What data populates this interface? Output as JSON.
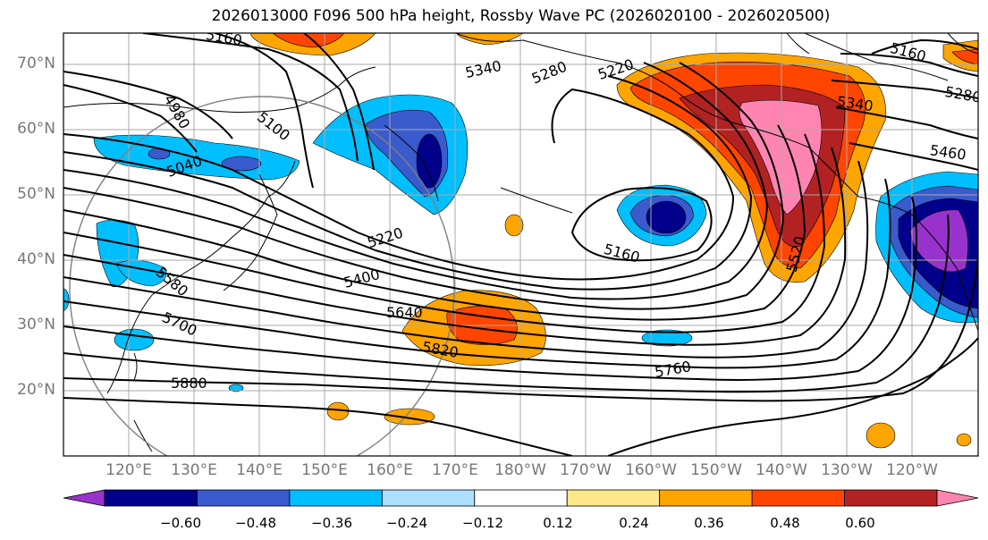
{
  "title": "2026013000 F096 500 hPa height, Rossby Wave PC (2026020100 - 2026020500)",
  "lat_labels": [
    "70°N",
    "60°N",
    "50°N",
    "40°N",
    "30°N",
    "20°N"
  ],
  "lon_labels": [
    "120°E",
    "130°E",
    "140°E",
    "150°E",
    "160°E",
    "170°E",
    "180°W",
    "170°W",
    "160°W",
    "150°W",
    "140°W",
    "130°W",
    "120°W"
  ],
  "colorbar": {
    "levels": [
      "−0.60",
      "−0.48",
      "−0.36",
      "−0.24",
      "−0.12",
      "0.12",
      "0.24",
      "0.36",
      "0.48",
      "0.60"
    ],
    "colors": [
      "#9932CC",
      "#00008B",
      "#3A5BCD",
      "#00BFFF",
      "#ADDFFF",
      "#FFFFFF",
      "#FFE88A",
      "#FFA500",
      "#FF4500",
      "#B22222",
      "#FF85B0"
    ]
  },
  "contour_labels": [
    "5160",
    "5340",
    "5280",
    "5220",
    "5160",
    "5280",
    "5340",
    "4980",
    "5100",
    "5040",
    "5460",
    "5220",
    "5400",
    "5520",
    "5160",
    "5580",
    "5640",
    "5700",
    "5820",
    "5760",
    "5880"
  ]
}
